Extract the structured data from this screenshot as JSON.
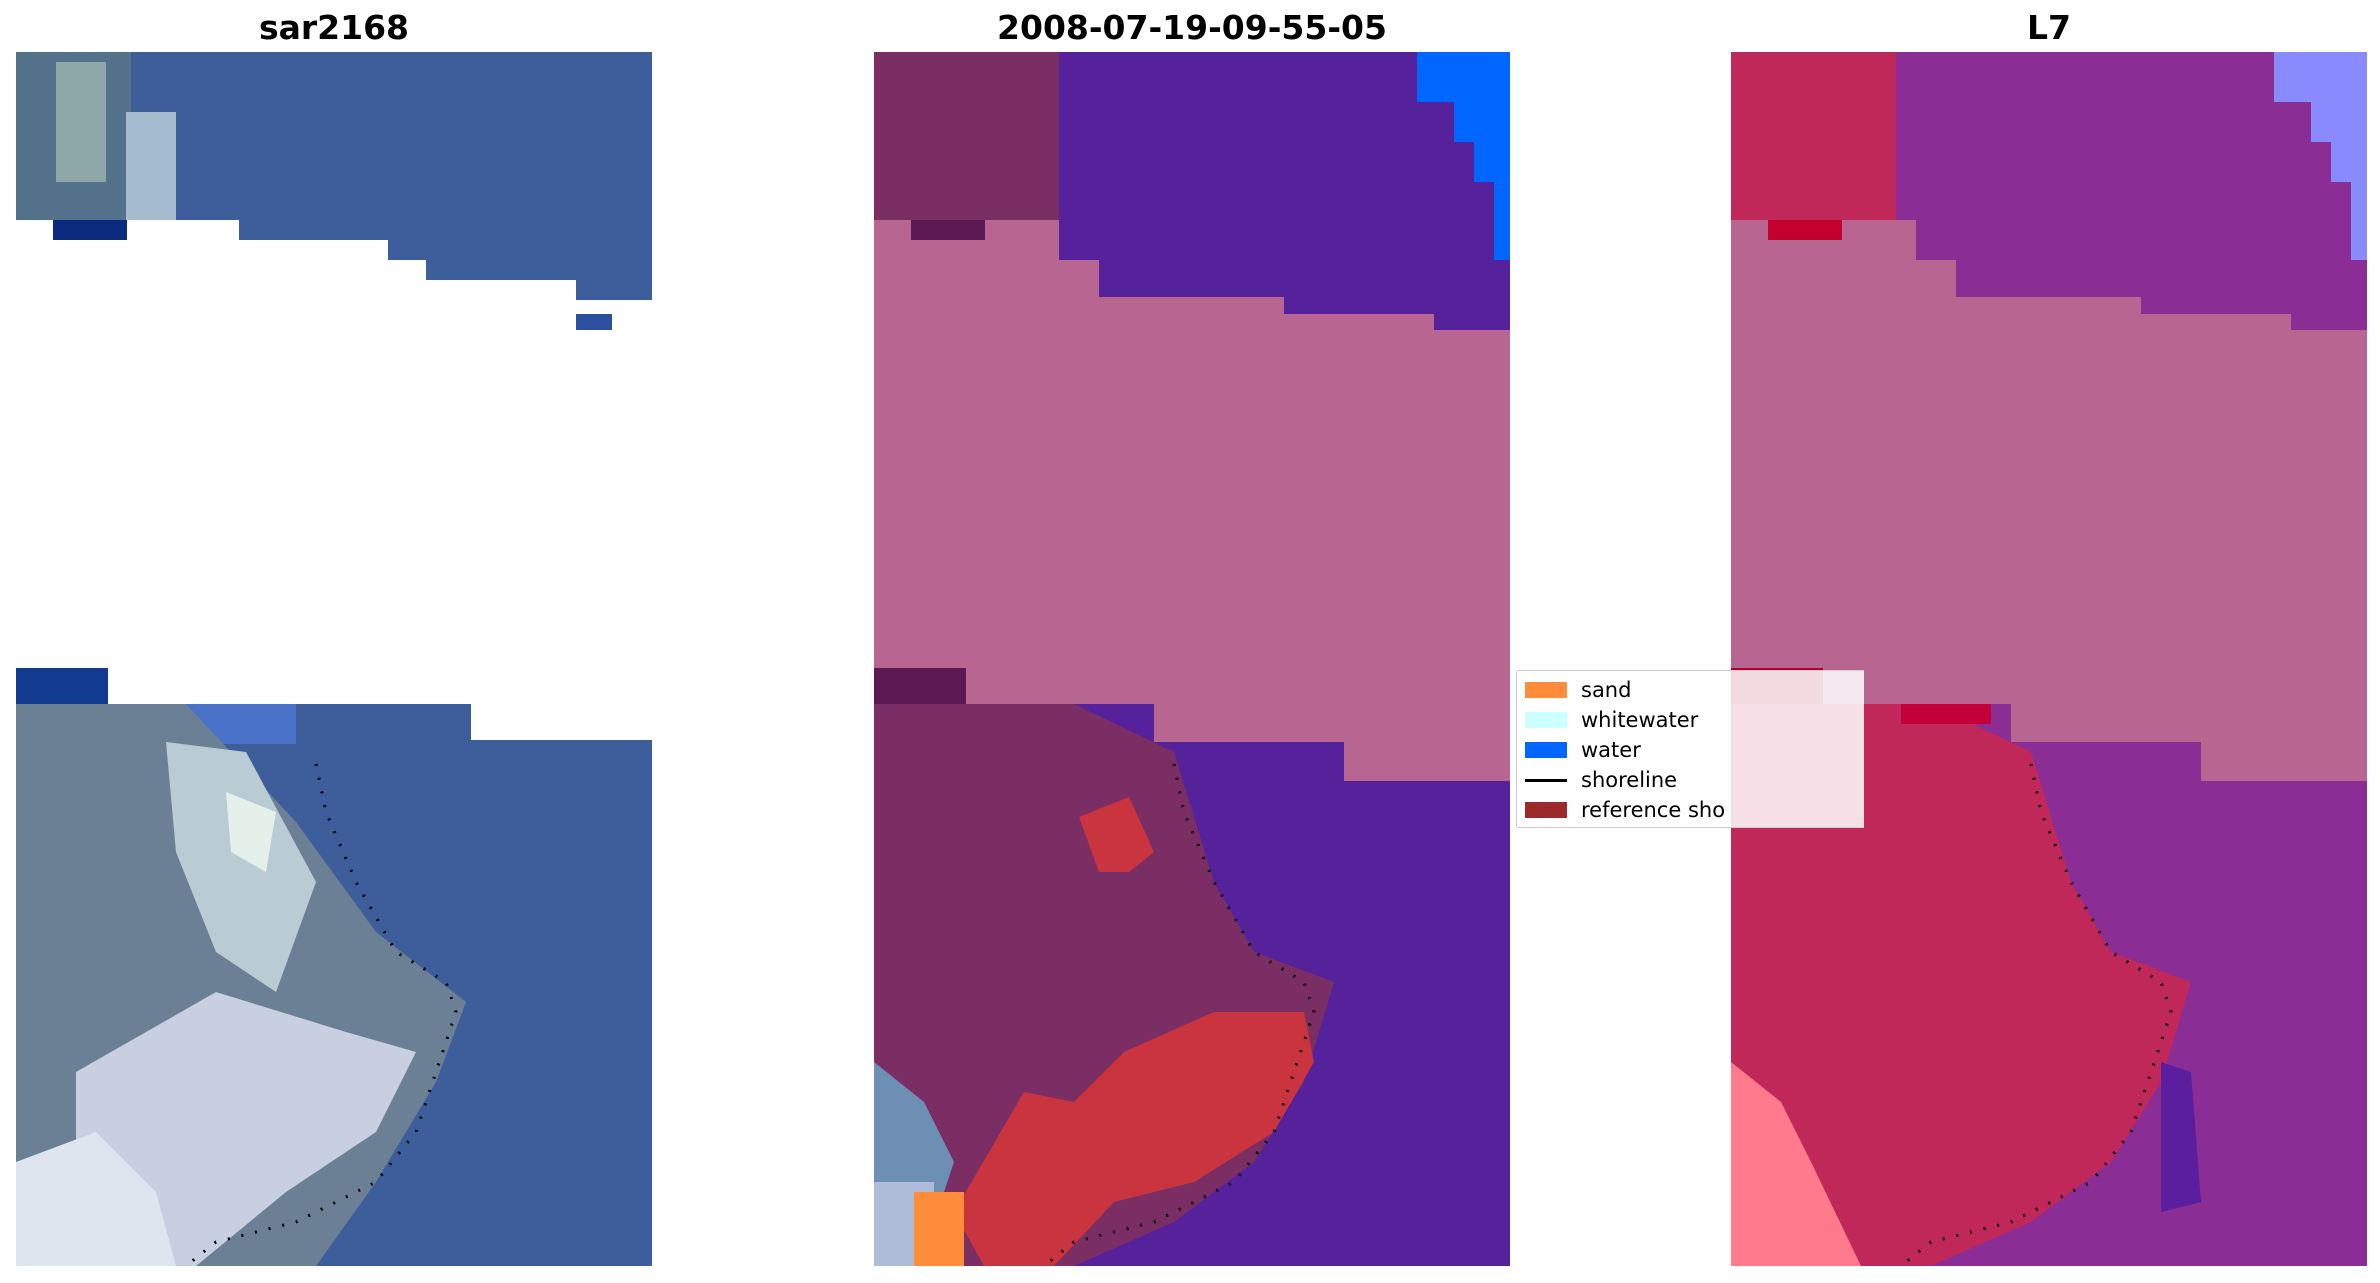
{
  "panels": [
    {
      "id": "sar",
      "title": "sar2168"
    },
    {
      "id": "classified",
      "title": "2008-07-19-09-55-05"
    },
    {
      "id": "mndwi",
      "title": "L7"
    }
  ],
  "legend": {
    "items": [
      {
        "label": "sand",
        "kind": "patch",
        "color": "#ff8c3b"
      },
      {
        "label": "whitewater",
        "kind": "patch",
        "color": "#ccffff"
      },
      {
        "label": "water",
        "kind": "patch",
        "color": "#0066ff"
      },
      {
        "label": "shoreline",
        "kind": "line",
        "color": "#000000"
      },
      {
        "label": "reference sho",
        "kind": "patch",
        "color": "#9b2a2a"
      }
    ]
  },
  "colors": {
    "sea_rgb": "#3d5e9a",
    "cloud_rgb": "#c7cfe0",
    "land_rgb": "#6b7f96",
    "nodata_overlay": "#b96592",
    "water_class": "#55229b",
    "land_class": "#7a2e63",
    "reference_shoreline": "#c9343f",
    "mndwi_water": "#8a2d95",
    "mndwi_land": "#c0285a"
  }
}
